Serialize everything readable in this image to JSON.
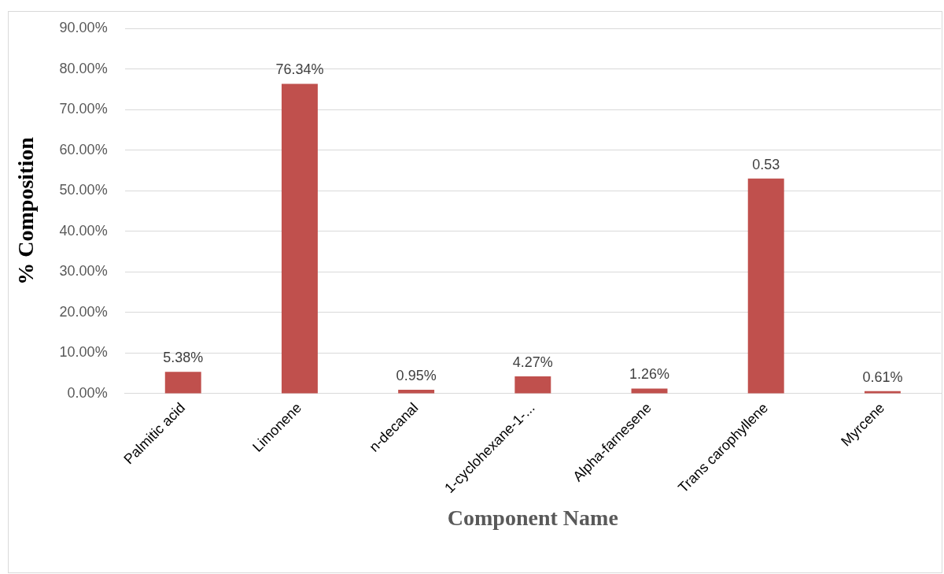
{
  "chart_data": {
    "type": "bar",
    "xlabel": "Component Name",
    "ylabel": "% Composition",
    "categories": [
      "Palmitic acid",
      "Limonene",
      "n-decanal",
      "1-cyclohexane-1-...",
      "Alpha-farnesene",
      "Trans carophyllene",
      "Myrcene"
    ],
    "values": [
      0.0538,
      0.7634,
      0.0095,
      0.0427,
      0.0126,
      0.53,
      0.0061
    ],
    "value_labels": [
      "5.38%",
      "76.34%",
      "0.95%",
      "4.27%",
      "1.26%",
      "0.53",
      "0.61%"
    ],
    "color": "#c0504d",
    "ylim": [
      0,
      0.9
    ],
    "yticks": [
      {
        "value": 0,
        "label": "0.00%"
      },
      {
        "value": 0.1,
        "label": "10.00%"
      },
      {
        "value": 0.2,
        "label": "20.00%"
      },
      {
        "value": 0.3,
        "label": "30.00%"
      },
      {
        "value": 0.4,
        "label": "40.00%"
      },
      {
        "value": 0.5,
        "label": "50.00%"
      },
      {
        "value": 0.6,
        "label": "60.00%"
      },
      {
        "value": 0.7,
        "label": "70.00%"
      },
      {
        "value": 0.8,
        "label": "80.00%"
      },
      {
        "value": 0.9,
        "label": "90.00%"
      }
    ],
    "grid": "y",
    "legend": false
  }
}
